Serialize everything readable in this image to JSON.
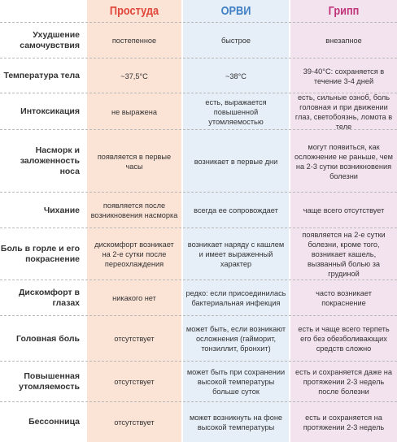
{
  "columns": [
    "Простуда",
    "ОРВИ",
    "Грипп"
  ],
  "rows": [
    {
      "label": "Ухудшение самочувствия",
      "cold": "постепенное",
      "arvi": "быстрое",
      "flu": "внезапное"
    },
    {
      "label": "Температура тела",
      "cold": "~37,5°С",
      "arvi": "~38°С",
      "flu": "39-40°С: сохраняется в течение 3-4 дней"
    },
    {
      "label": "Интоксикация",
      "cold": "не выражена",
      "arvi": "есть, выражается повышенной утомляемостью",
      "flu": "есть, сильные озноб, боль головная и при движении глаз, светобоязнь, ломота в теле"
    },
    {
      "label": "Насморк и заложенность носа",
      "cold": "появляется в первые часы",
      "arvi": "возникает в первые дни",
      "flu": "могут появиться, как осложнение не раньше, чем на 2-3 сутки возникновения болезни"
    },
    {
      "label": "Чихание",
      "cold": "появляется после возникновения насморка",
      "arvi": "всегда ее сопровождает",
      "flu": "чаще всего отсутствует"
    },
    {
      "label": "Боль в горле и его покраснение",
      "cold": "дискомфорт возникает на 2-е сутки после переохлаждения",
      "arvi": "возникает наряду с кашлем и имеет выраженный характер",
      "flu": "появляется на 2-е сутки болезни, кроме того, возникает кашель, вызванный болью за грудиной"
    },
    {
      "label": "Дискомфорт в глазах",
      "cold": "никакого нет",
      "arvi": "редко: если присоединилась бактериальная инфекция",
      "flu": "часто возникает покраснение"
    },
    {
      "label": "Головная боль",
      "cold": "отсутствует",
      "arvi": "может быть, если возникают осложнения (гайморит, тонзиллит, бронхит)",
      "flu": "есть и чаще всего терпеть его без обезболивающих средств сложно"
    },
    {
      "label": "Повышенная утомляемость",
      "cold": "отсутствует",
      "arvi": "может быть при сохранении высокой температуры больше суток",
      "flu": "есть и сохраняется даже на протяжении 2-3 недель после болезни"
    },
    {
      "label": "Бессонница",
      "cold": "отсутствует",
      "arvi": "может возникнуть на фоне высокой температуры",
      "flu": "есть и сохраняется на протяжении 2-3 недель"
    }
  ]
}
